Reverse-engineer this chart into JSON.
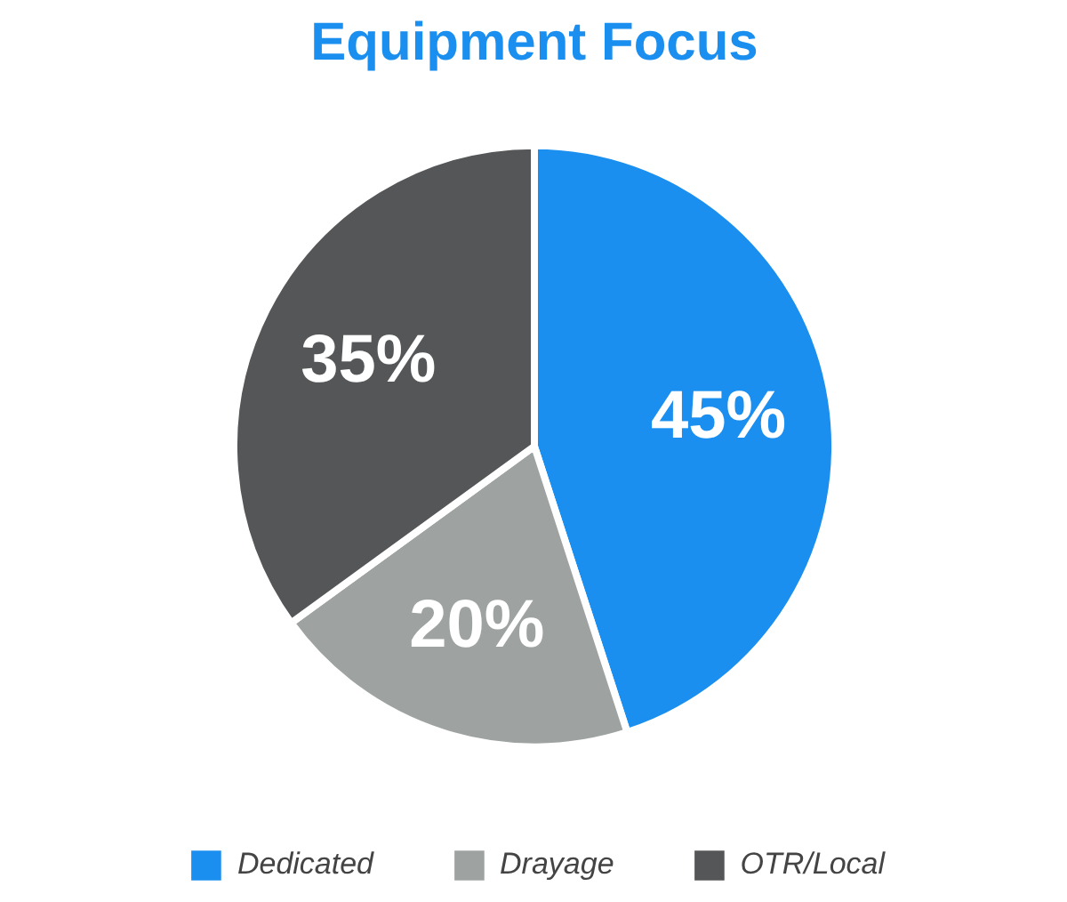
{
  "chart_data": {
    "type": "pie",
    "title": "Equipment Focus",
    "categories": [
      "Dedicated",
      "Drayage",
      "OTR/Local"
    ],
    "values": [
      45,
      20,
      35
    ],
    "colors": [
      "#1a8fef",
      "#9ea3a2",
      "#545658"
    ],
    "value_labels": [
      "45%",
      "20%",
      "35%"
    ],
    "legend": "bottom"
  }
}
